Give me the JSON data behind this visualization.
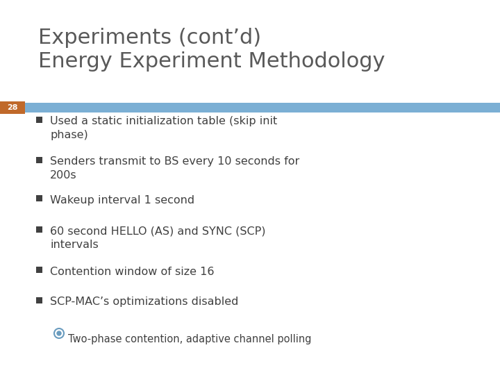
{
  "title_line1": "Experiments (cont’d)",
  "title_line2": "Energy Experiment Methodology",
  "slide_number": "28",
  "title_color": "#595959",
  "title_fontsize": 22,
  "bg_color": "#ffffff",
  "bar_color": "#7bafd4",
  "slide_num_bg": "#c0692a",
  "slide_num_color": "#ffffff",
  "slide_num_fontsize": 8,
  "bullet_items": [
    "Used a static initialization table (skip init\nphase)",
    "Senders transmit to BS every 10 seconds for\n200s",
    "Wakeup interval 1 second",
    "60 second HELLO (AS) and SYNC (SCP)\nintervals",
    "Contention window of size 16",
    "SCP-MAC’s optimizations disabled"
  ],
  "sub_bullet": "Two-phase contention, adaptive channel polling",
  "bullet_color": "#404040",
  "bullet_fontsize": 11.5,
  "sub_bullet_fontsize": 10.5,
  "sub_bullet_color": "#404040",
  "bullet_square_color": "#404040",
  "sub_bullet_circle_color": "#6a9cbf"
}
